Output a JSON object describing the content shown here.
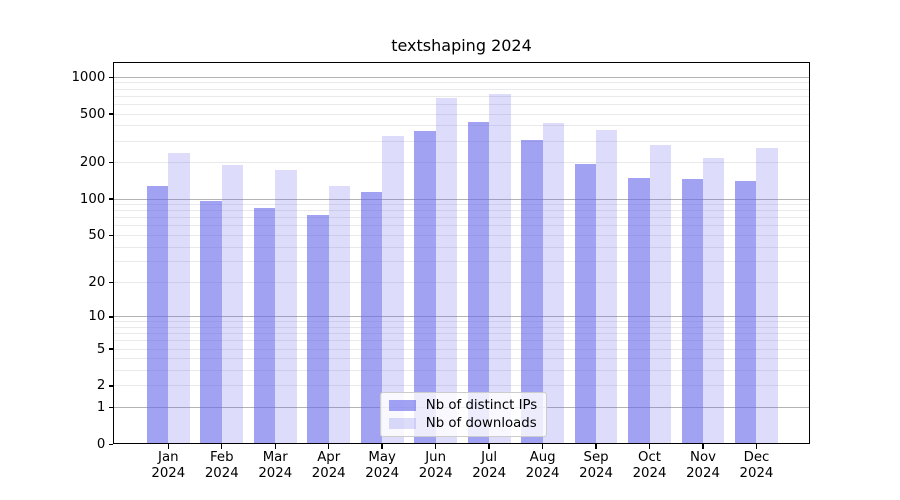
{
  "chart_data": {
    "type": "bar",
    "title": "textshaping 2024",
    "categories": [
      "Jan",
      "Feb",
      "Mar",
      "Apr",
      "May",
      "Jun",
      "Jul",
      "Aug",
      "Sep",
      "Oct",
      "Nov",
      "Dec"
    ],
    "x_tick_second_line": "2024",
    "series": [
      {
        "name": "Nb of distinct IPs",
        "color": "rgba(100,100,235,0.60)",
        "values": [
          128,
          96,
          84,
          74,
          115,
          365,
          427,
          306,
          195,
          150,
          147,
          141
        ]
      },
      {
        "name": "Nb of downloads",
        "color": "rgba(100,100,235,0.22)",
        "values": [
          242,
          191,
          173,
          129,
          330,
          683,
          728,
          419,
          371,
          279,
          218,
          263
        ]
      }
    ],
    "yscale": "log1p",
    "y_ticks": [
      0,
      1,
      2,
      5,
      10,
      20,
      50,
      100,
      200,
      500,
      1000
    ],
    "y_major_gridlines": [
      1,
      10,
      100,
      1000
    ],
    "ylim": [
      0,
      1345
    ],
    "grid": true,
    "legend_position": "lower center",
    "colors": {
      "axis": "#000000",
      "text": "#000000",
      "major_grid": "#b3b3b3",
      "minor_grid": "#e9e9e9",
      "legend_bg": "rgba(255,255,255,0.8)",
      "legend_border": "#cccccc"
    }
  }
}
